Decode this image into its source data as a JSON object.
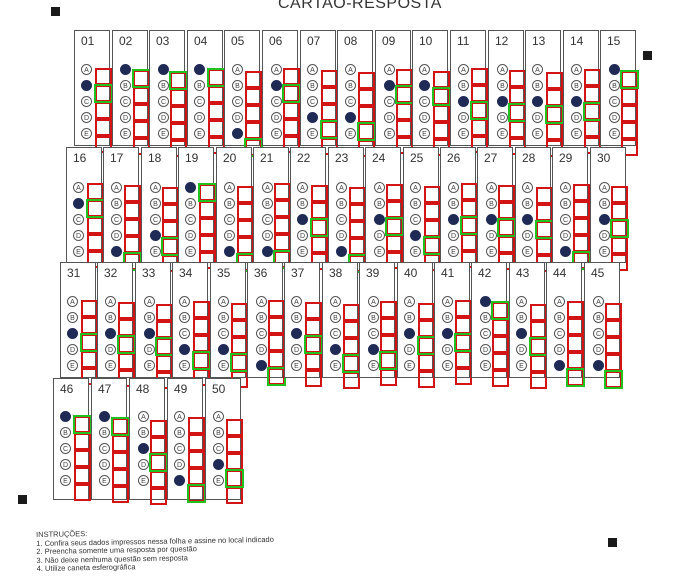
{
  "header": {
    "title": "CARTAO-RESPOSTA"
  },
  "options": [
    "A",
    "B",
    "C",
    "D",
    "E"
  ],
  "questions": [
    {
      "n": "01",
      "mark": "B"
    },
    {
      "n": "02",
      "mark": "A"
    },
    {
      "n": "03",
      "mark": "A"
    },
    {
      "n": "04",
      "mark": "A"
    },
    {
      "n": "05",
      "mark": "E"
    },
    {
      "n": "06",
      "mark": "B"
    },
    {
      "n": "07",
      "mark": "D"
    },
    {
      "n": "08",
      "mark": "D"
    },
    {
      "n": "09",
      "mark": "B"
    },
    {
      "n": "10",
      "mark": "B"
    },
    {
      "n": "11",
      "mark": "C"
    },
    {
      "n": "12",
      "mark": "C"
    },
    {
      "n": "13",
      "mark": "C"
    },
    {
      "n": "14",
      "mark": "C"
    },
    {
      "n": "15",
      "mark": "A"
    },
    {
      "n": "16",
      "mark": "B"
    },
    {
      "n": "17",
      "mark": "E"
    },
    {
      "n": "18",
      "mark": "D"
    },
    {
      "n": "19",
      "mark": "A"
    },
    {
      "n": "20",
      "mark": "E"
    },
    {
      "n": "21",
      "mark": "E"
    },
    {
      "n": "22",
      "mark": "C"
    },
    {
      "n": "23",
      "mark": "E"
    },
    {
      "n": "24",
      "mark": "C"
    },
    {
      "n": "25",
      "mark": "D"
    },
    {
      "n": "26",
      "mark": "C"
    },
    {
      "n": "27",
      "mark": "C"
    },
    {
      "n": "28",
      "mark": "C"
    },
    {
      "n": "29",
      "mark": "E"
    },
    {
      "n": "30",
      "mark": "C"
    },
    {
      "n": "31",
      "mark": "C"
    },
    {
      "n": "32",
      "mark": "C"
    },
    {
      "n": "33",
      "mark": "C"
    },
    {
      "n": "34",
      "mark": "D"
    },
    {
      "n": "35",
      "mark": "D"
    },
    {
      "n": "36",
      "mark": "E"
    },
    {
      "n": "37",
      "mark": "C"
    },
    {
      "n": "38",
      "mark": "D"
    },
    {
      "n": "39",
      "mark": "D"
    },
    {
      "n": "40",
      "mark": "C"
    },
    {
      "n": "41",
      "mark": "C"
    },
    {
      "n": "42",
      "mark": "A"
    },
    {
      "n": "43",
      "mark": "C"
    },
    {
      "n": "44",
      "mark": "E"
    },
    {
      "n": "45",
      "mark": "E"
    },
    {
      "n": "46",
      "mark": "A"
    },
    {
      "n": "47",
      "mark": "A"
    },
    {
      "n": "48",
      "mark": "C"
    },
    {
      "n": "49",
      "mark": "E"
    },
    {
      "n": "50",
      "mark": "D"
    }
  ],
  "instructions": {
    "heading": "INSTRUÇÕES:",
    "items": [
      "1. Confira seus dados impressos nessa folha e assine no local indicado",
      "2. Preencha somente uma resposta por questão",
      "3. Não deixe nenhuma questão sem resposta",
      "4. Utilize caneta esferográfica"
    ]
  },
  "colors": {
    "detected_box": "#d21414",
    "selected_box": "#1fc21f",
    "filled_bubble": "#1f2a55"
  }
}
